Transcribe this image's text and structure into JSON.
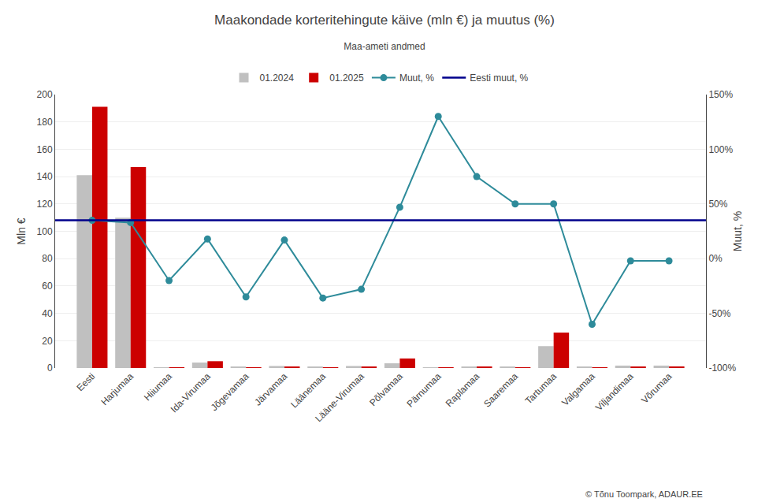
{
  "chart_data": {
    "type": "bar",
    "title": "Maakondade korteritehingute käive (mln €) ja muutus (%)",
    "subtitle": "Maa-ameti andmed",
    "ylabel": "Mln €",
    "y2label": "Muut, %",
    "annotations": [
      "© Tõnu Toompark, ADAUR.EE"
    ],
    "categories": [
      "Eesti",
      "Harjumaa",
      "Hiiumaa",
      "Ida-Virumaa",
      "Jõgevamaa",
      "Järvamaa",
      "Läänemaa",
      "Lääne-Virumaa",
      "Põlvamaa",
      "Pärnumaa",
      "Raplamaa",
      "Saaremaa",
      "Tartumaa",
      "Valgamaa",
      "Viljandimaa",
      "Võrumaa"
    ],
    "series": [
      {
        "name": "01.2024",
        "color": "#c0c0c0",
        "values": [
          141,
          110,
          0.4,
          4.0,
          0.8,
          1.5,
          0.8,
          1.5,
          3.5,
          0.4,
          0.8,
          0.8,
          16,
          0.8,
          1.8,
          1.8
        ]
      },
      {
        "name": "01.2025",
        "color": "#cc0000",
        "values": [
          191,
          147,
          0.2,
          5.0,
          0.4,
          0.8,
          0.4,
          0.8,
          7.0,
          0.2,
          0.8,
          0.2,
          26,
          0.4,
          0.8,
          1.2
        ]
      },
      {
        "name": "Muut, %",
        "type": "line",
        "axis": "y2",
        "color": "#2e8b9a",
        "marker": "circle",
        "values": [
          35,
          33,
          -20,
          18,
          -35,
          17,
          -36,
          -28,
          47,
          130,
          75,
          50,
          50,
          -60,
          -2,
          -2
        ]
      },
      {
        "name": "Eesti muut, %",
        "type": "hline",
        "axis": "y2",
        "color": "#00008b",
        "value": 35
      }
    ],
    "ylim": [
      0,
      200
    ],
    "yticks": [
      0,
      20,
      40,
      60,
      80,
      100,
      120,
      140,
      160,
      180,
      200
    ],
    "y2lim": [
      -100,
      150
    ],
    "y2ticks": [
      {
        "value": -100,
        "label": "-100%"
      },
      {
        "value": -50,
        "label": "-50%"
      },
      {
        "value": 0,
        "label": "0%"
      },
      {
        "value": 50,
        "label": "50%"
      },
      {
        "value": 100,
        "label": "100%"
      },
      {
        "value": 150,
        "label": "150%"
      }
    ],
    "grid": true,
    "legend": "top"
  }
}
